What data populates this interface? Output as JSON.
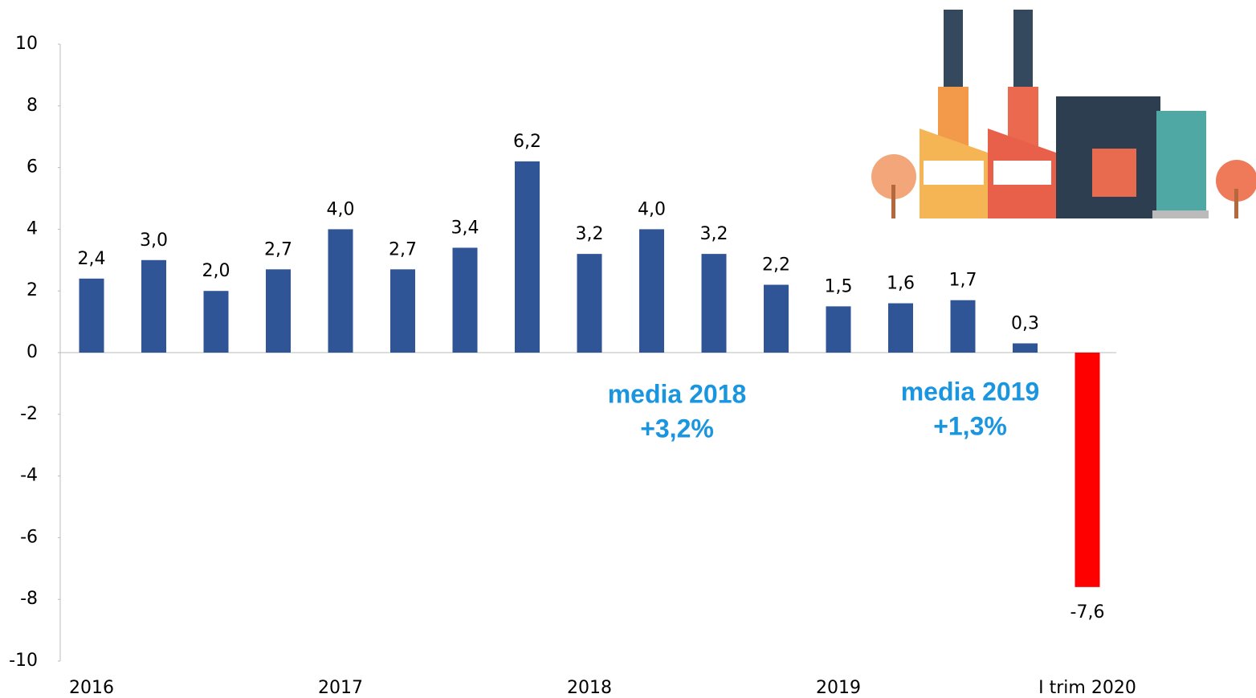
{
  "chart_data": {
    "type": "bar",
    "categories": [
      "2016",
      null,
      null,
      null,
      "2017",
      null,
      null,
      null,
      "2018",
      null,
      null,
      null,
      "2019",
      null,
      null,
      null,
      "I trim 2020"
    ],
    "values": [
      2.4,
      3.0,
      2.0,
      2.7,
      4.0,
      2.7,
      3.4,
      6.2,
      3.2,
      4.0,
      3.2,
      2.2,
      1.5,
      1.6,
      1.7,
      0.3,
      -7.6
    ],
    "value_labels": [
      "2,4",
      "3,0",
      "2,0",
      "2,7",
      "4,0",
      "2,7",
      "3,4",
      "6,2",
      "3,2",
      "4,0",
      "3,2",
      "2,2",
      "1,5",
      "1,6",
      "1,7",
      "0,3",
      "-7,6"
    ],
    "colors": [
      "#2f5597",
      "#2f5597",
      "#2f5597",
      "#2f5597",
      "#2f5597",
      "#2f5597",
      "#2f5597",
      "#2f5597",
      "#2f5597",
      "#2f5597",
      "#2f5597",
      "#2f5597",
      "#2f5597",
      "#2f5597",
      "#2f5597",
      "#2f5597",
      "#ff0000"
    ],
    "ylim": [
      -10,
      10
    ],
    "yticks": [
      10,
      8,
      6,
      4,
      2,
      0,
      -2,
      -4,
      -6,
      -8,
      -10
    ],
    "grid": false,
    "annotations": [
      {
        "lines": [
          "media 2018",
          "+3,2%"
        ],
        "color": "#1a95e0"
      },
      {
        "lines": [
          "media 2019",
          "+1,3%"
        ],
        "color": "#1a95e0"
      }
    ]
  }
}
